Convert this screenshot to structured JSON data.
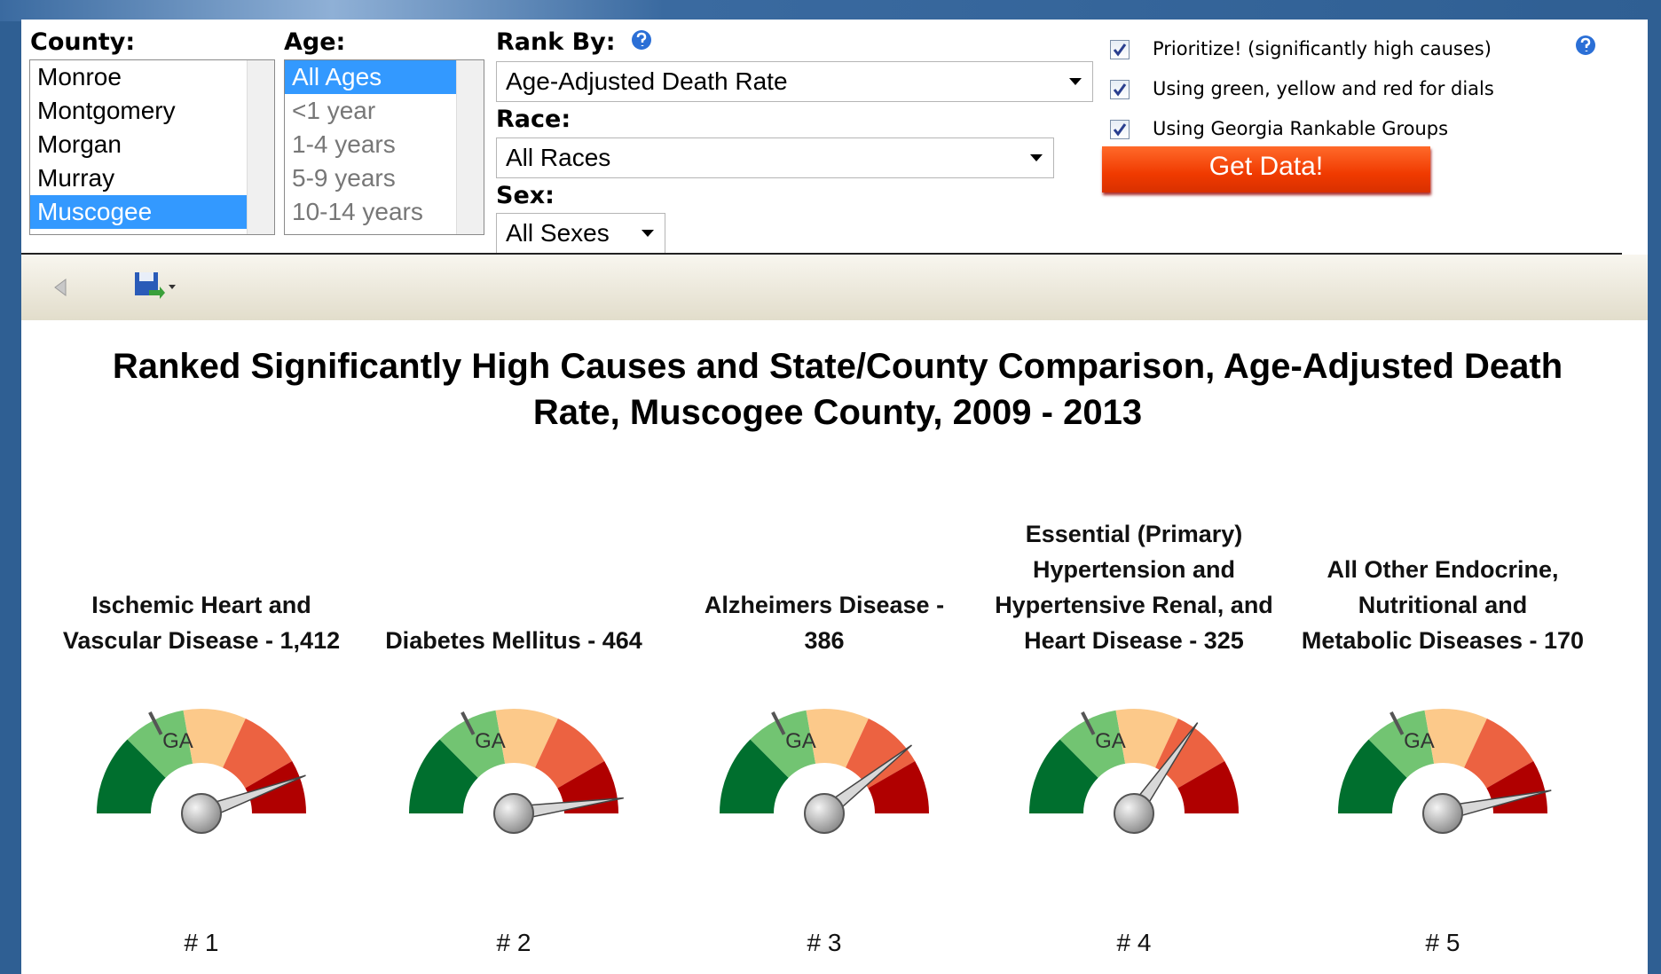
{
  "filters": {
    "county": {
      "label": "County:",
      "options": [
        "Monroe",
        "Montgomery",
        "Morgan",
        "Murray",
        "Muscogee"
      ]
    },
    "age": {
      "label": "Age:",
      "options": [
        "All Ages",
        "<1 year",
        "1-4 years",
        "5-9 years",
        "10-14 years"
      ]
    },
    "rank_by": {
      "label": "Rank By:",
      "value": "Age-Adjusted Death Rate"
    },
    "race": {
      "label": "Race:",
      "value": "All Races"
    },
    "sex": {
      "label": "Sex:",
      "value": "All Sexes"
    }
  },
  "checkboxes": [
    "Prioritize! (significantly high causes)",
    "Using green, yellow and red for dials",
    "Using Georgia Rankable Groups"
  ],
  "button": "Get Data!",
  "report": {
    "title": "Ranked Significantly High Causes and State/County Comparison, Age-Adjusted Death Rate, Muscogee County, 2009 - 2013",
    "gauge_marker": "GA",
    "gauges": [
      {
        "label": "Ischemic Heart and Vascular Disease - 1,412",
        "rank": "# 1"
      },
      {
        "label": "Diabetes Mellitus - 464",
        "rank": "# 2"
      },
      {
        "label": "Alzheimers Disease - 386",
        "rank": "# 3"
      },
      {
        "label": "Essential (Primary) Hypertension and Hypertensive Renal, and Heart Disease - 325",
        "rank": "# 4"
      },
      {
        "label": "All Other Endocrine, Nutritional and Metabolic Diseases - 170",
        "rank": "# 5"
      }
    ]
  }
}
